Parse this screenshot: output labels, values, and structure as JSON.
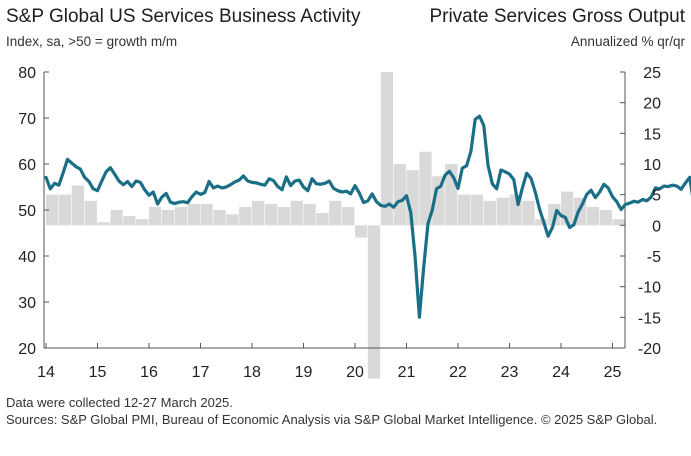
{
  "header": {
    "title_left": "S&P Global US Services Business Activity",
    "title_right": "Private Services Gross Output",
    "subtitle_left": "Index, sa, >50 = growth m/m",
    "subtitle_right": "Annualized % qr/qr"
  },
  "footer": {
    "note": "Data were collected 12-27 March 2025.",
    "sources": "Sources: S&P Global PMI, Bureau of Economic Analysis via S&P Global Market Intelligence. © 2025 S&P Global."
  },
  "colors": {
    "line": "#1a6f86",
    "bars": "#d9d9d9",
    "axis": "#555555"
  },
  "chart_data": {
    "type": "bar+line",
    "x_tick_labels": [
      "14",
      "15",
      "16",
      "17",
      "18",
      "19",
      "20",
      "21",
      "22",
      "23",
      "24",
      "25"
    ],
    "left_axis": {
      "ylim": [
        20,
        80
      ],
      "ticks": [
        80,
        70,
        60,
        50,
        40,
        30,
        20
      ]
    },
    "right_axis": {
      "ylim": [
        -20,
        25
      ],
      "ticks": [
        25,
        20,
        15,
        10,
        5,
        0,
        -5,
        -10,
        -15,
        -20
      ]
    },
    "bars": {
      "axis": "right",
      "quarters": [
        "2014 Q1",
        "2014 Q2",
        "2014 Q3",
        "2014 Q4",
        "2015 Q1",
        "2015 Q2",
        "2015 Q3",
        "2015 Q4",
        "2016 Q1",
        "2016 Q2",
        "2016 Q3",
        "2016 Q4",
        "2017 Q1",
        "2017 Q2",
        "2017 Q3",
        "2017 Q4",
        "2018 Q1",
        "2018 Q2",
        "2018 Q3",
        "2018 Q4",
        "2019 Q1",
        "2019 Q2",
        "2019 Q3",
        "2019 Q4",
        "2020 Q1",
        "2020 Q2",
        "2020 Q3",
        "2020 Q4",
        "2021 Q1",
        "2021 Q2",
        "2021 Q3",
        "2021 Q4",
        "2022 Q1",
        "2022 Q2",
        "2022 Q3",
        "2022 Q4",
        "2023 Q1",
        "2023 Q2",
        "2023 Q3",
        "2023 Q4",
        "2024 Q1",
        "2024 Q2",
        "2024 Q3",
        "2024 Q4",
        "2025 Q1"
      ],
      "values": [
        5,
        5,
        6.5,
        4,
        0.5,
        2.5,
        1.5,
        1,
        3,
        2.5,
        3,
        3.5,
        3.5,
        2.5,
        1.8,
        3,
        4,
        3.5,
        3,
        4,
        3.5,
        2,
        4,
        3,
        -2,
        -25,
        25,
        10,
        9,
        12,
        8,
        10,
        5,
        5,
        4,
        4.5,
        5,
        4,
        1,
        3.5,
        5.5,
        4.5,
        3,
        2.5,
        1
      ]
    },
    "line": {
      "axis": "left",
      "start": "2014-01",
      "values": [
        57.1,
        54.6,
        55.8,
        55.4,
        58.1,
        61.0,
        60.2,
        59.4,
        58.9,
        57.1,
        56.2,
        54.6,
        54.2,
        56.3,
        58.3,
        59.2,
        57.8,
        56.3,
        55.5,
        56.2,
        55.1,
        56.3,
        56.0,
        54.4,
        53.2,
        53.9,
        51.3,
        52.8,
        53.6,
        51.7,
        51.4,
        51.7,
        51.8,
        51.6,
        52.9,
        53.9,
        53.4,
        53.8,
        56.2,
        54.8,
        55.2,
        54.8,
        55.0,
        55.5,
        56.1,
        56.5,
        57.4,
        56.3,
        56.0,
        55.9,
        55.6,
        55.4,
        56.8,
        56.4,
        55.1,
        54.4,
        57.2,
        55.3,
        56.3,
        56.5,
        55.0,
        54.2,
        56.8,
        55.7,
        55.6,
        55.8,
        56.3,
        54.7,
        54.2,
        53.9,
        54.1,
        53.5,
        55.3,
        53.7,
        51.6,
        52.0,
        53.5,
        51.8,
        51.0,
        50.8,
        51.3,
        50.6,
        51.8,
        52.1,
        53.1,
        49.4,
        39.8,
        26.7,
        37.5,
        47.0,
        50.0,
        54.6,
        55.2,
        57.6,
        58.4,
        57.0,
        54.7,
        59.1,
        59.6,
        62.7,
        69.7,
        70.4,
        68.4,
        59.7,
        55.7,
        54.6,
        58.7,
        58.3,
        57.8,
        56.6,
        51.2,
        54.8,
        58.0,
        56.9,
        53.9,
        50.2,
        47.3,
        44.3,
        46.2,
        49.9,
        48.8,
        48.4,
        46.2,
        46.8,
        49.6,
        51.3,
        53.4,
        54.3,
        52.7,
        53.9,
        55.6,
        54.8,
        52.9,
        51.8,
        50.1,
        51.2,
        51.5,
        51.9,
        51.7,
        52.3,
        52.0,
        52.8,
        54.8,
        54.6,
        55.2,
        55.1,
        55.4,
        55.2,
        54.5,
        55.9,
        57.1,
        51.0,
        54.4
      ]
    }
  }
}
